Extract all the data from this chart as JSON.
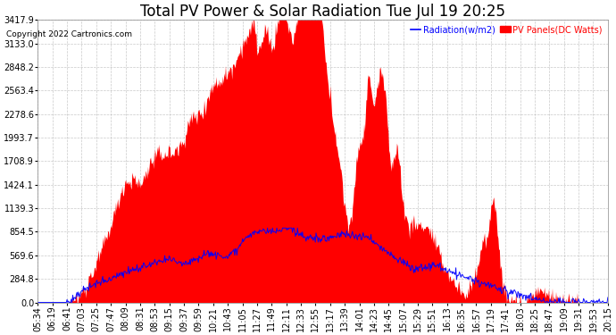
{
  "title": "Total PV Power & Solar Radiation Tue Jul 19 20:25",
  "copyright": "Copyright 2022 Cartronics.com",
  "legend_radiation": "Radiation(w/m2)",
  "legend_pv": "PV Panels(DC Watts)",
  "yticks": [
    0.0,
    284.8,
    569.6,
    854.5,
    1139.3,
    1424.1,
    1708.9,
    1993.7,
    2278.6,
    2563.4,
    2848.2,
    3133.0,
    3417.9
  ],
  "ymax": 3417.9,
  "ymin": 0.0,
  "bg_color": "#ffffff",
  "plot_bg_color": "#ffffff",
  "grid_color": "#bbbbbb",
  "pv_color": "#ff0000",
  "radiation_color": "#0000ff",
  "title_fontsize": 12,
  "tick_fontsize": 7,
  "xtick_labels": [
    "05:34",
    "06:19",
    "06:41",
    "07:03",
    "07:25",
    "07:47",
    "08:09",
    "08:31",
    "08:53",
    "09:15",
    "09:37",
    "09:59",
    "10:21",
    "10:43",
    "11:05",
    "11:27",
    "11:49",
    "12:11",
    "12:33",
    "12:55",
    "13:17",
    "13:39",
    "14:01",
    "14:23",
    "14:45",
    "15:07",
    "15:29",
    "15:51",
    "16:13",
    "16:35",
    "16:57",
    "17:19",
    "17:41",
    "18:03",
    "18:25",
    "18:47",
    "19:09",
    "19:31",
    "19:53",
    "20:15"
  ]
}
